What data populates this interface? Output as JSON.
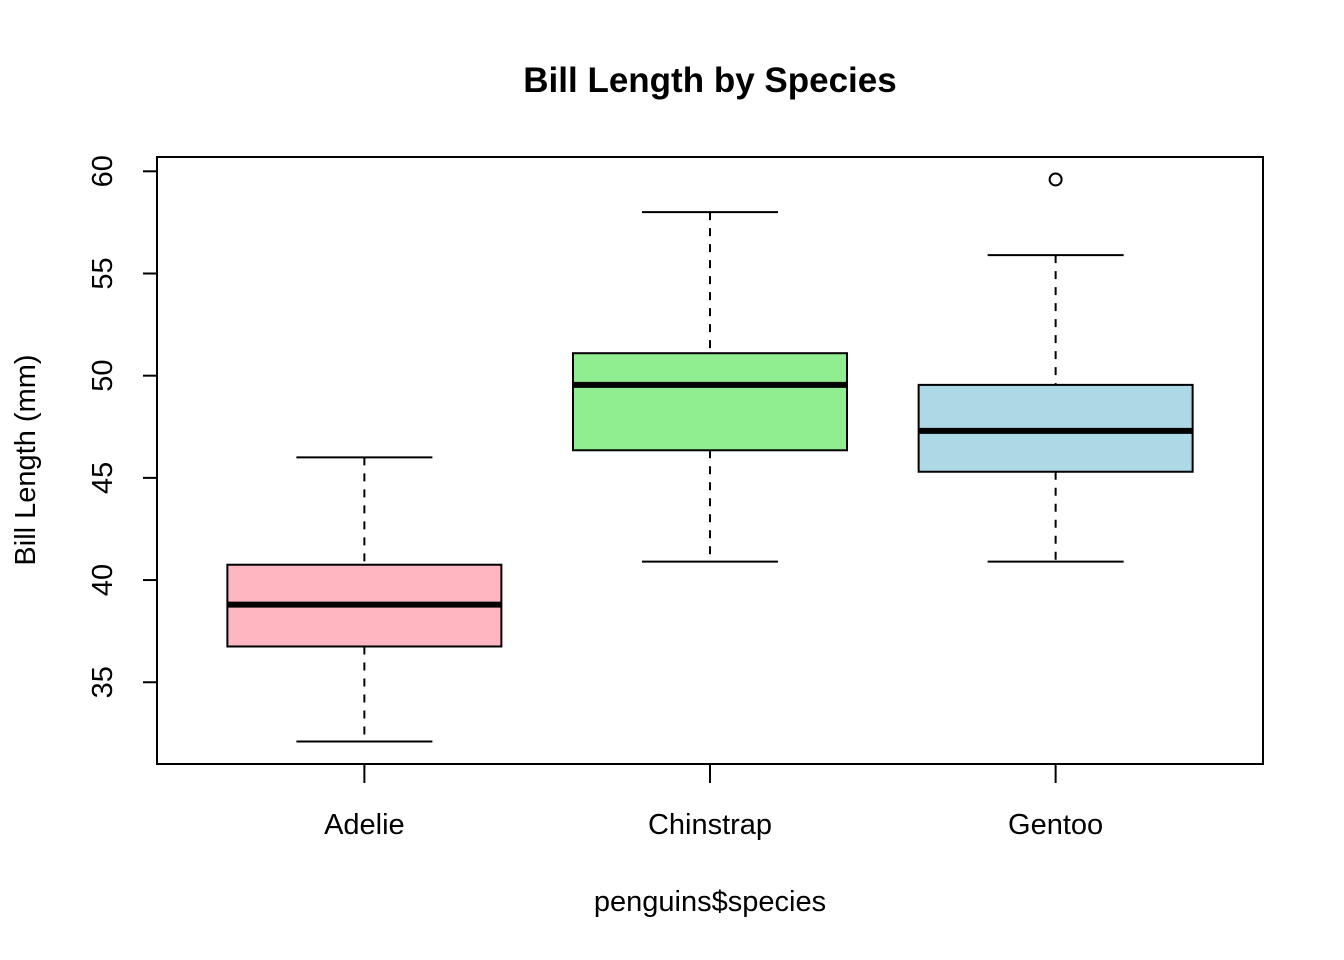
{
  "chart_data": {
    "type": "boxplot",
    "title": "Bill Length by Species",
    "xlabel": "penguins$species",
    "ylabel": "Bill Length (mm)",
    "ylim": [
      31.0,
      60.7
    ],
    "yticks": [
      35,
      40,
      45,
      50,
      55,
      60
    ],
    "grid": false,
    "categories": [
      "Adelie",
      "Chinstrap",
      "Gentoo"
    ],
    "boxes": [
      {
        "name": "Adelie",
        "fill": "#FFB6C1",
        "whisker_low": 32.1,
        "q1": 36.75,
        "median": 38.8,
        "q3": 40.75,
        "whisker_high": 46.0,
        "outliers": []
      },
      {
        "name": "Chinstrap",
        "fill": "#90EE90",
        "whisker_low": 40.9,
        "q1": 46.35,
        "median": 49.55,
        "q3": 51.1,
        "whisker_high": 58.0,
        "outliers": []
      },
      {
        "name": "Gentoo",
        "fill": "#ADD8E6",
        "whisker_low": 40.9,
        "q1": 45.3,
        "median": 47.3,
        "q3": 49.55,
        "whisker_high": 55.9,
        "outliers": [
          59.6
        ]
      }
    ]
  }
}
